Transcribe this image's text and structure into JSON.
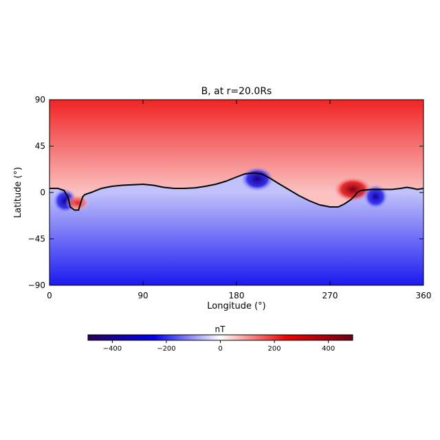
{
  "chart_data": {
    "type": "heatmap",
    "title": "B, at r=20.0Rs",
    "xlabel": "Longitude (°)",
    "ylabel": "Latitude (°)",
    "xlim": [
      0,
      360
    ],
    "ylim": [
      -90,
      90
    ],
    "xticks": [
      0,
      90,
      180,
      270,
      360
    ],
    "xtick_labels": [
      "0",
      "90",
      "180",
      "270",
      "360"
    ],
    "yticks": [
      90,
      45,
      0,
      -45,
      -90
    ],
    "ytick_labels": [
      "90",
      "45",
      "0",
      "−45",
      "−90"
    ],
    "grid": false,
    "neutral_line": {
      "color": "#000000",
      "points": [
        [
          0,
          4
        ],
        [
          8,
          4
        ],
        [
          14,
          2
        ],
        [
          18,
          -5
        ],
        [
          20,
          -14
        ],
        [
          24,
          -17
        ],
        [
          28,
          -17
        ],
        [
          30,
          -10
        ],
        [
          32,
          -4
        ],
        [
          34,
          -2
        ],
        [
          40,
          0
        ],
        [
          50,
          4
        ],
        [
          60,
          6
        ],
        [
          70,
          7
        ],
        [
          80,
          7.5
        ],
        [
          90,
          8
        ],
        [
          100,
          7
        ],
        [
          110,
          5
        ],
        [
          120,
          4
        ],
        [
          130,
          4
        ],
        [
          140,
          4.5
        ],
        [
          150,
          6
        ],
        [
          160,
          8
        ],
        [
          170,
          11
        ],
        [
          180,
          15
        ],
        [
          188,
          18
        ],
        [
          196,
          19
        ],
        [
          204,
          18
        ],
        [
          212,
          14
        ],
        [
          220,
          9
        ],
        [
          230,
          3
        ],
        [
          240,
          -3
        ],
        [
          250,
          -8
        ],
        [
          260,
          -12
        ],
        [
          270,
          -14
        ],
        [
          278,
          -14
        ],
        [
          284,
          -11
        ],
        [
          290,
          -7
        ],
        [
          294,
          -3
        ],
        [
          296,
          0
        ],
        [
          300,
          2
        ],
        [
          310,
          3
        ],
        [
          320,
          3
        ],
        [
          330,
          3
        ],
        [
          338,
          4
        ],
        [
          344,
          5
        ],
        [
          350,
          4
        ],
        [
          354,
          3
        ],
        [
          360,
          4
        ]
      ]
    },
    "features": [
      {
        "kind": "negative",
        "lon": 15,
        "lat": -8,
        "strength": 380
      },
      {
        "kind": "positive",
        "lon": 27,
        "lat": -10,
        "strength": 220
      },
      {
        "kind": "negative",
        "lon": 200,
        "lat": 13,
        "strength": 430
      },
      {
        "kind": "positive",
        "lon": 292,
        "lat": 3,
        "strength": 460
      },
      {
        "kind": "negative",
        "lon": 314,
        "lat": -4,
        "strength": 380
      }
    ],
    "colorbar": {
      "label": "nT",
      "range": [
        -490,
        490
      ],
      "ticks": [
        -400,
        -200,
        0,
        200,
        400
      ],
      "tick_labels": [
        "−400",
        "−200",
        "0",
        "200",
        "400"
      ],
      "colors": [
        "#2a0059",
        "#0000ee",
        "#ffffff",
        "#ee0000",
        "#6e0018"
      ]
    }
  }
}
